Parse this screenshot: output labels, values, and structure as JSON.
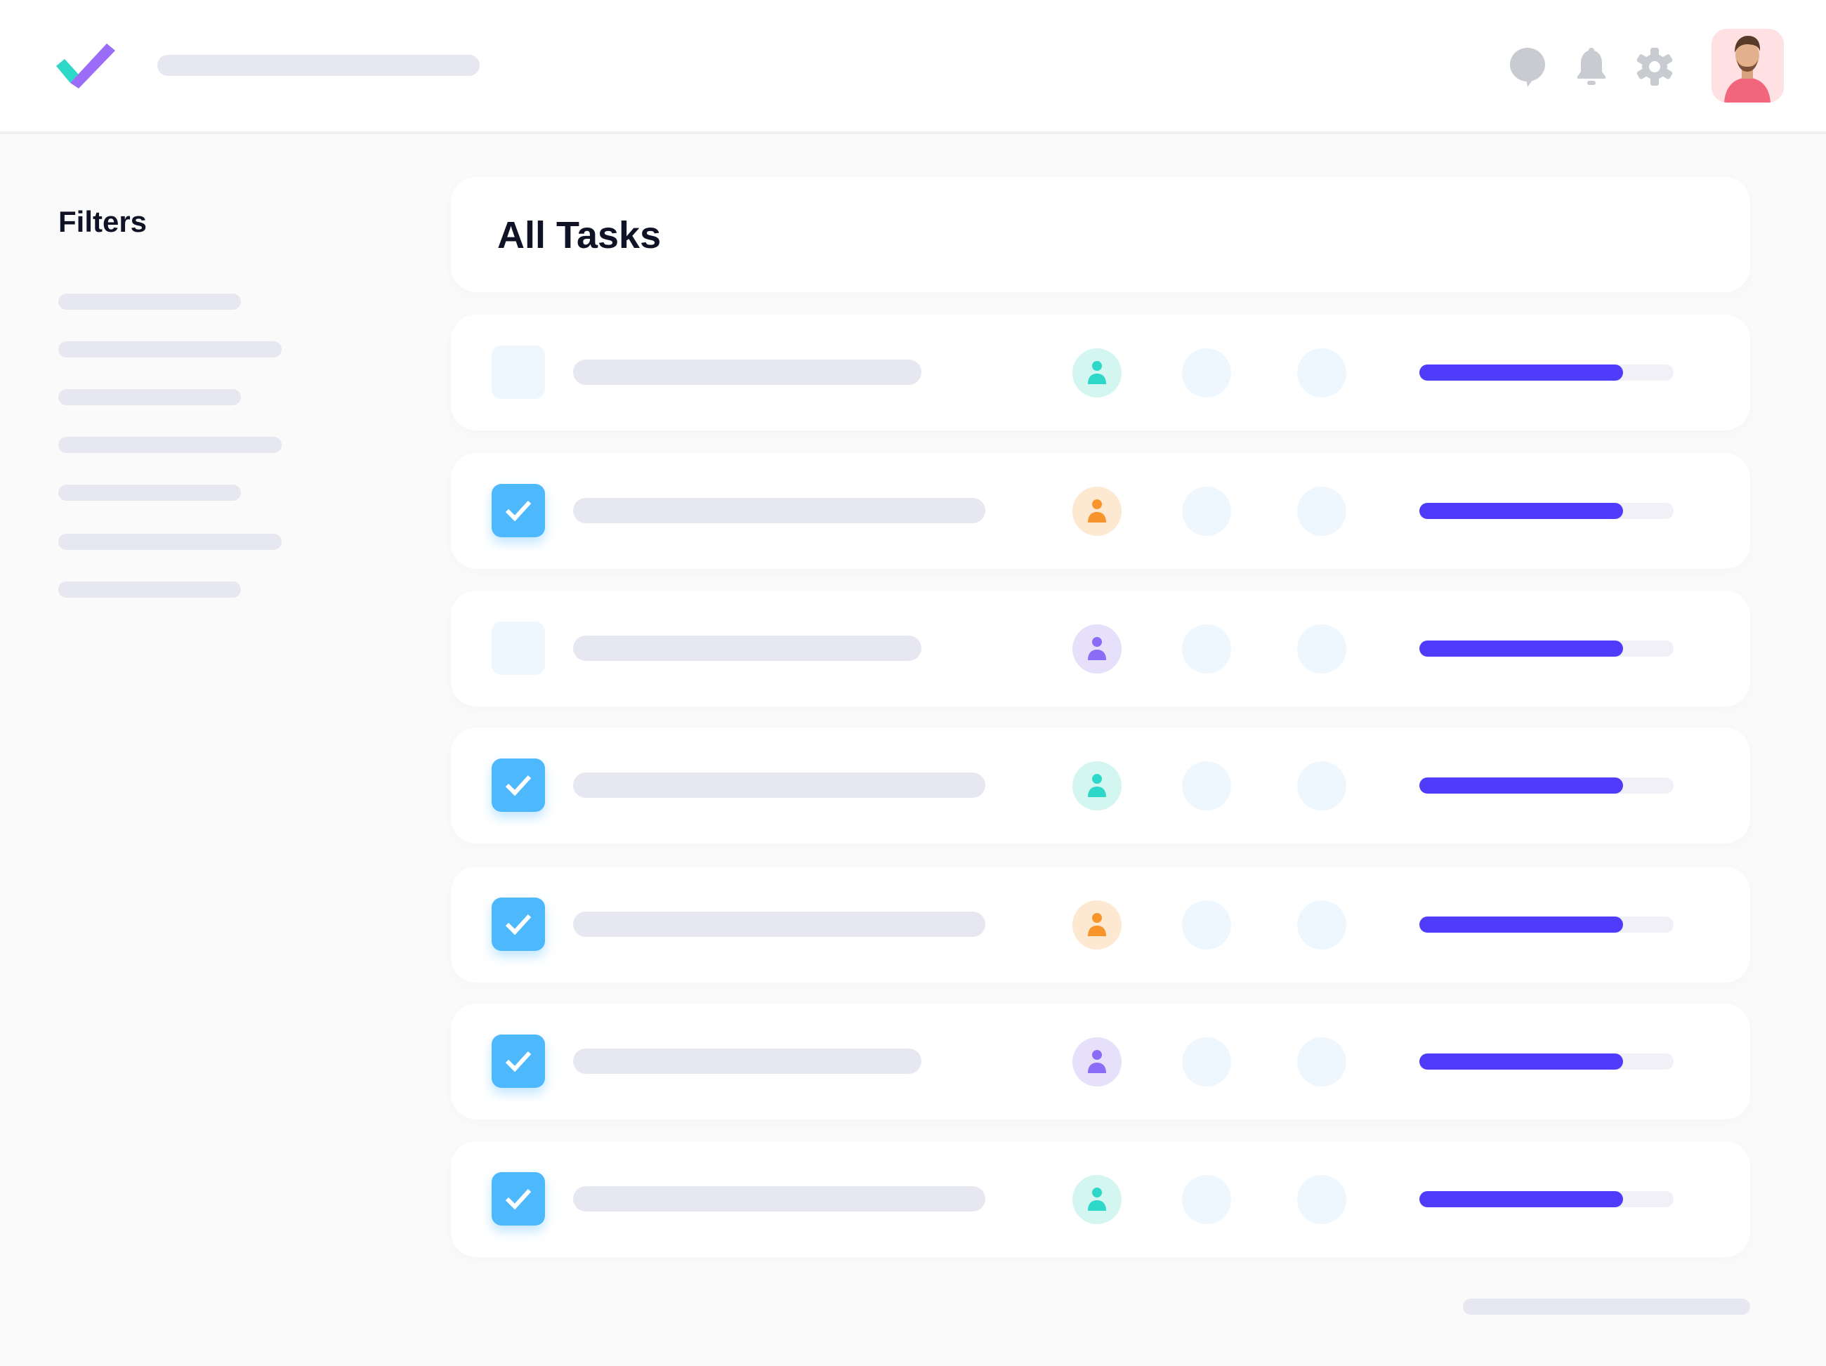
{
  "header": {
    "logo_icon": "check-logo",
    "icons": [
      "chat-icon",
      "bell-icon",
      "gear-icon"
    ],
    "avatar": "user-avatar"
  },
  "sidebar": {
    "title": "Filters",
    "item_count_visible": 7
  },
  "main": {
    "title": "All Tasks",
    "colors": {
      "accent": "#4f3cfb",
      "checkbox": "#4db8fc",
      "teal": "#2ed8c8",
      "orange": "#f7952c",
      "purple": "#8a6cf6"
    },
    "tasks": [
      {
        "checked": false,
        "assignee_color": "teal",
        "progress": 0.8
      },
      {
        "checked": true,
        "assignee_color": "orange",
        "progress": 0.8
      },
      {
        "checked": false,
        "assignee_color": "purple",
        "progress": 0.8
      },
      {
        "checked": true,
        "assignee_color": "teal",
        "progress": 0.8
      },
      {
        "checked": true,
        "assignee_color": "orange",
        "progress": 0.8
      },
      {
        "checked": true,
        "assignee_color": "purple",
        "progress": 0.8
      },
      {
        "checked": true,
        "assignee_color": "teal",
        "progress": 0.8
      }
    ]
  }
}
